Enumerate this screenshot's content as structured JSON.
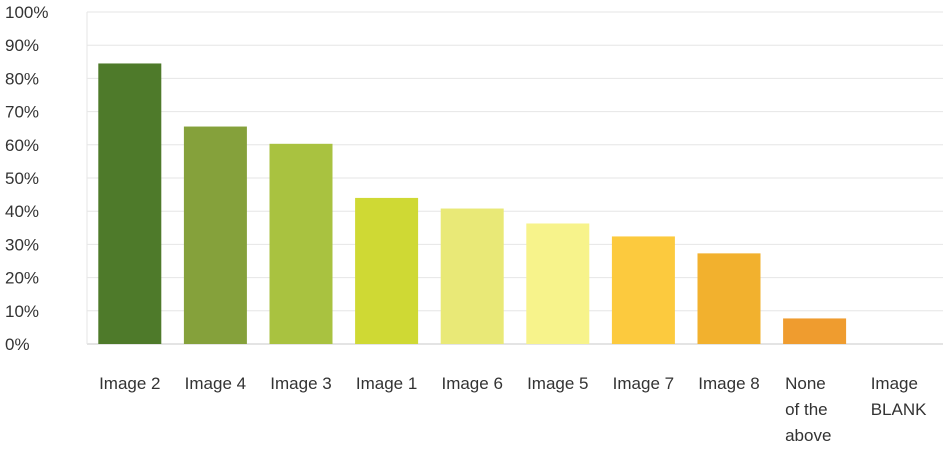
{
  "chart_data": {
    "type": "bar",
    "categories": [
      [
        "Image 2"
      ],
      [
        "Image 4"
      ],
      [
        "Image 3"
      ],
      [
        "Image 1"
      ],
      [
        "Image 6"
      ],
      [
        "Image 5"
      ],
      [
        "Image 7"
      ],
      [
        "Image 8"
      ],
      [
        "None",
        "of the",
        "above"
      ],
      [
        "Image",
        "BLANK"
      ]
    ],
    "values": [
      84.5,
      65.5,
      60.3,
      44.0,
      40.8,
      36.3,
      32.4,
      27.3,
      7.7,
      0
    ],
    "colors": [
      "#4e7a2a",
      "#85a13b",
      "#a9c240",
      "#cfd934",
      "#e9e977",
      "#f7f38b",
      "#fcca3e",
      "#f2b12e",
      "#ef9c2f",
      "#ef9c2f"
    ],
    "ylim": [
      0,
      100
    ],
    "ytick_labels": [
      "0%",
      "10%",
      "20%",
      "30%",
      "40%",
      "50%",
      "60%",
      "70%",
      "80%",
      "90%",
      "100%"
    ],
    "grid": true
  }
}
